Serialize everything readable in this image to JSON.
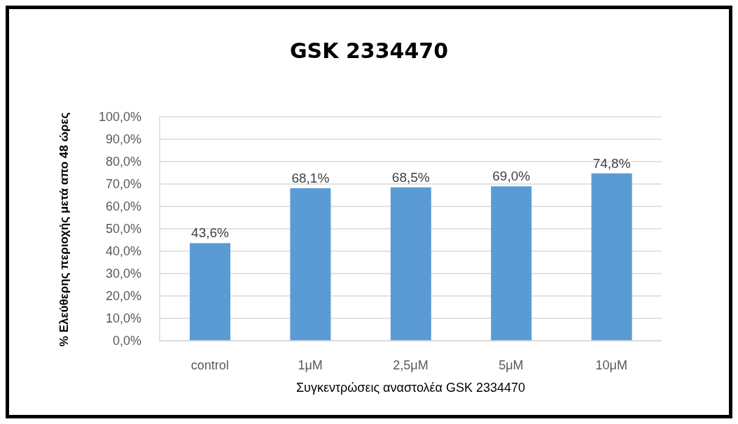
{
  "chart_data": {
    "type": "bar",
    "title": "GSK 2334470",
    "xlabel": "Συγκεντρώσεις αναστολέα GSK 2334470",
    "ylabel": "% Ελεύθερης περιοχής μετά απο 48 ώρες",
    "categories": [
      "control",
      "1μM",
      "2,5μM",
      "5μM",
      "10μM"
    ],
    "values": [
      43.6,
      68.1,
      68.5,
      69.0,
      74.8
    ],
    "value_labels": [
      "43,6%",
      "68,1%",
      "68,5%",
      "69,0%",
      "74,8%"
    ],
    "color": "#5b9bd5",
    "ylim": [
      0,
      100
    ],
    "yticks": [
      {
        "value": 0,
        "label": "0,0%"
      },
      {
        "value": 10,
        "label": "10,0%"
      },
      {
        "value": 20,
        "label": "20,0%"
      },
      {
        "value": 30,
        "label": "30,0%"
      },
      {
        "value": 40,
        "label": "40,0%"
      },
      {
        "value": 50,
        "label": "50,0%"
      },
      {
        "value": 60,
        "label": "60,0%"
      },
      {
        "value": 70,
        "label": "70,0%"
      },
      {
        "value": 80,
        "label": "80,0%"
      },
      {
        "value": 90,
        "label": "90,0%"
      },
      {
        "value": 100,
        "label": "100,0%"
      }
    ],
    "grid": "y"
  }
}
